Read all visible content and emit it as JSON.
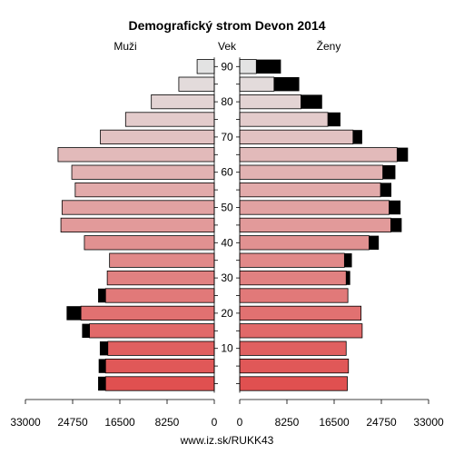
{
  "chart_data": {
    "type": "bar",
    "title": "Demografický strom Devon 2014",
    "left_label": "Muži",
    "center_label": "Vek",
    "right_label": "Ženy",
    "footer": "www.iz.sk/RUKK43",
    "age_ticks": [
      "10",
      "20",
      "30",
      "40",
      "50",
      "60",
      "70",
      "80",
      "90"
    ],
    "x_ticks_left": [
      "33000",
      "24750",
      "16500",
      "8250",
      "0"
    ],
    "x_ticks_right": [
      "0",
      "8250",
      "16500",
      "24750",
      "33000"
    ],
    "xlim": [
      0,
      33000
    ],
    "age_groups": [
      "0-4",
      "5-9",
      "10-14",
      "15-19",
      "20-24",
      "25-29",
      "30-34",
      "35-39",
      "40-44",
      "45-49",
      "50-54",
      "55-59",
      "60-64",
      "65-69",
      "70-74",
      "75-79",
      "80-84",
      "85-89",
      "90+"
    ],
    "series": [
      {
        "name": "Muži",
        "values": [
          19000,
          19000,
          18600,
          21800,
          23300,
          19000,
          18700,
          18300,
          22700,
          26800,
          26600,
          24300,
          24900,
          27300,
          19900,
          15500,
          11000,
          6200,
          3000
        ],
        "excess": [
          1300,
          1200,
          1400,
          1300,
          2500,
          1300,
          0,
          0,
          0,
          0,
          0,
          0,
          0,
          0,
          0,
          0,
          0,
          0,
          0
        ]
      },
      {
        "name": "Ženy",
        "values": [
          18800,
          19000,
          18600,
          21400,
          21200,
          18900,
          18600,
          18300,
          22600,
          26400,
          26100,
          24600,
          25000,
          27500,
          19800,
          15400,
          10700,
          6000,
          2900
        ],
        "excess": [
          0,
          0,
          0,
          0,
          0,
          0,
          700,
          1300,
          1700,
          1900,
          2000,
          1900,
          2200,
          1900,
          1600,
          2200,
          3700,
          4400,
          4300
        ]
      }
    ],
    "colors": {
      "bottom": "#e05050",
      "top": "#e3e3e3",
      "excess": "#000000",
      "axis": "#000000"
    }
  }
}
